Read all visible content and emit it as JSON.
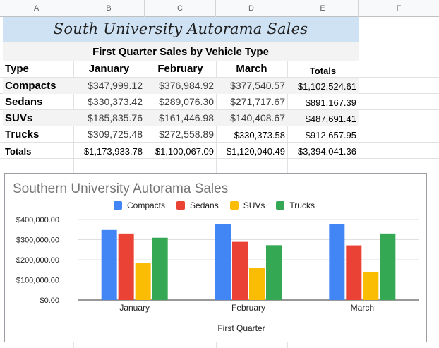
{
  "columns": [
    "A",
    "B",
    "C",
    "D",
    "E",
    "F"
  ],
  "sheet": {
    "title": "South University Autorama Sales",
    "subtitle": "First Quarter Sales by Vehicle Type",
    "headers": [
      "Type",
      "January",
      "February",
      "March",
      "Totals"
    ],
    "rows": [
      {
        "label": "Compacts",
        "values": [
          "$347,999.12",
          "$376,984.92",
          "$377,540.57"
        ],
        "total": "$1,102,524.61"
      },
      {
        "label": "Sedans",
        "values": [
          "$330,373.42",
          "$289,076.30",
          "$271,717.67"
        ],
        "total": "$891,167.39"
      },
      {
        "label": "SUVs",
        "values": [
          "$185,835.76",
          "$161,446.98",
          "$140,408.67"
        ],
        "total": "$487,691.41"
      },
      {
        "label": "Trucks",
        "values": [
          "$309,725.48",
          "$272,558.89",
          "$330,373.58"
        ],
        "total": "$912,657.95"
      }
    ],
    "totals": {
      "label": "Totals",
      "values": [
        "$1,173,933.78",
        "$1,100,067.09",
        "$1,120,040.49",
        "$3,394,041.36"
      ]
    }
  },
  "chart_data": {
    "type": "bar",
    "title": "Southern University Autorama Sales",
    "xlabel": "First Quarter",
    "ylabel": "",
    "categories": [
      "January",
      "February",
      "March"
    ],
    "series": [
      {
        "name": "Compacts",
        "color": "#4285f4",
        "values": [
          347999.12,
          376984.92,
          377540.57
        ]
      },
      {
        "name": "Sedans",
        "color": "#ea4335",
        "values": [
          330373.42,
          289076.3,
          271717.67
        ]
      },
      {
        "name": "SUVs",
        "color": "#fbbc04",
        "values": [
          185835.76,
          161446.98,
          140408.67
        ]
      },
      {
        "name": "Trucks",
        "color": "#34a853",
        "values": [
          309725.48,
          272558.89,
          330373.58
        ]
      }
    ],
    "ylim": [
      0,
      400000
    ],
    "yticks": [
      "$0.00",
      "$100,000.00",
      "$200,000.00",
      "$300,000.00",
      "$400,000.00"
    ],
    "grid": true,
    "legend_position": "top"
  }
}
